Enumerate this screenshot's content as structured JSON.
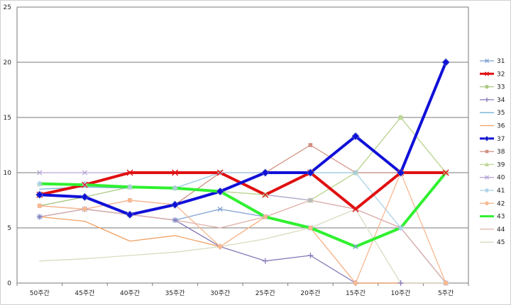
{
  "chart_data": {
    "type": "line",
    "title": "",
    "xlabel": "",
    "ylabel": "",
    "ylim": [
      0,
      25
    ],
    "yticks": [
      0,
      5,
      10,
      15,
      20,
      25
    ],
    "grid": "horizontal",
    "legend_position": "right",
    "categories": [
      "50주간",
      "45주간",
      "40주간",
      "35주간",
      "30주간",
      "25주간",
      "20주간",
      "15주간",
      "10주간",
      "5주간"
    ],
    "series": [
      {
        "name": "31",
        "color": "#7f9fd0",
        "marker": "x",
        "width": 1.3,
        "values": [
          6,
          6.7,
          6.2,
          5.7,
          6.7,
          6,
          5,
          3.3,
          5,
          0
        ]
      },
      {
        "name": "32",
        "color": "#e01010",
        "marker": "x",
        "width": 4,
        "values": [
          8,
          8.9,
          10,
          10,
          10,
          8,
          10,
          6.7,
          10,
          10
        ]
      },
      {
        "name": "33",
        "color": "#a8c880",
        "marker": "circle",
        "width": 1.3,
        "values": [
          7,
          7.8,
          8.7,
          8.6,
          8.3,
          8,
          7.5,
          10,
          15,
          10
        ]
      },
      {
        "name": "34",
        "color": "#8878b8",
        "marker": "plus",
        "width": 1.3,
        "values": [
          6,
          6.7,
          6.2,
          5.7,
          3.3,
          2,
          2.5,
          0,
          0,
          0
        ]
      },
      {
        "name": "35",
        "color": "#70b0d8",
        "marker": "none",
        "width": 1.3,
        "values": [
          8.5,
          8.7,
          8.6,
          8.6,
          10,
          10,
          10,
          10,
          10,
          10
        ]
      },
      {
        "name": "36",
        "color": "#f0a060",
        "marker": "none",
        "width": 1.3,
        "values": [
          6,
          5.6,
          3.8,
          4.3,
          3.3,
          6,
          5,
          0,
          0,
          0
        ]
      },
      {
        "name": "37",
        "color": "#1010d8",
        "marker": "diamond",
        "width": 4,
        "values": [
          8,
          7.8,
          6.2,
          7.1,
          8.3,
          10,
          10,
          13.3,
          10,
          20
        ]
      },
      {
        "name": "38",
        "color": "#d09080",
        "marker": "square",
        "width": 1.3,
        "values": [
          7,
          6.7,
          7.5,
          7.1,
          10,
          10,
          12.5,
          10,
          10,
          10
        ]
      },
      {
        "name": "39",
        "color": "#c0d898",
        "marker": "triangle",
        "width": 1.3,
        "values": [
          9,
          9,
          8.7,
          8.6,
          8.3,
          8,
          7.5,
          10,
          15,
          10
        ]
      },
      {
        "name": "40",
        "color": "#b8a8d8",
        "marker": "x",
        "width": 1.3,
        "values": [
          10,
          10,
          10,
          10,
          10,
          8,
          7.5,
          6.7,
          5,
          0
        ]
      },
      {
        "name": "41",
        "color": "#a8d0e8",
        "marker": "star",
        "width": 1.3,
        "values": [
          9,
          9,
          8.7,
          8.6,
          10,
          10,
          10,
          10,
          5,
          0
        ]
      },
      {
        "name": "42",
        "color": "#f8b890",
        "marker": "circle",
        "width": 1.3,
        "values": [
          7,
          6.7,
          7.5,
          7.1,
          3.3,
          6,
          5,
          0,
          10,
          0
        ]
      },
      {
        "name": "43",
        "color": "#30f030",
        "marker": "none",
        "width": 4,
        "values": [
          9,
          8.9,
          8.7,
          8.6,
          8.3,
          6,
          5,
          3.3,
          5,
          10
        ]
      },
      {
        "name": "44",
        "color": "#e0b0a8",
        "marker": "none",
        "width": 1.3,
        "values": [
          6,
          6.7,
          6.2,
          5.7,
          5,
          6,
          7.5,
          6.7,
          5,
          0
        ]
      },
      {
        "name": "45",
        "color": "#d8dcc0",
        "marker": "none",
        "width": 1.3,
        "values": [
          2,
          2.2,
          2.5,
          2.8,
          3.3,
          4,
          5,
          6.7,
          0,
          0
        ]
      }
    ]
  }
}
